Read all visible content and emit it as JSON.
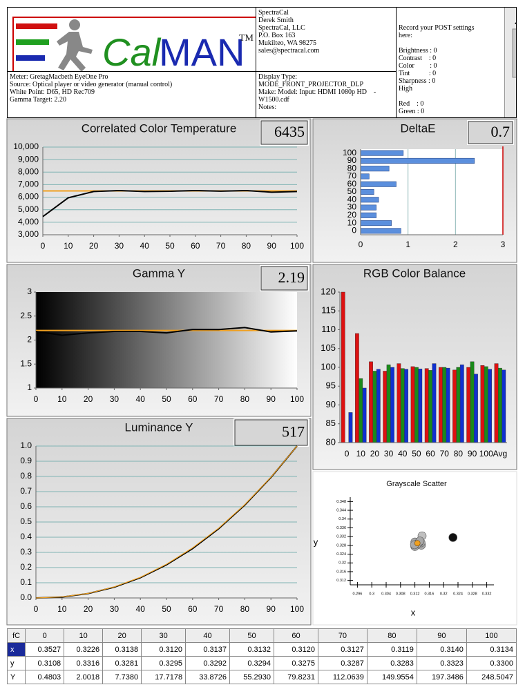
{
  "logo": {
    "part1": "Cal",
    "part2": "MAN",
    "tm": "TM"
  },
  "company": {
    "lines": [
      "SpectraCal",
      "Derek Smith",
      "SpectraCal, LLC",
      "P.O. Box 163",
      "Mukilteo, WA 98275",
      "sales@spectracal.com"
    ]
  },
  "post": {
    "lines": [
      "Record your POST settings",
      "here:",
      "Brightness : 0",
      "Contrast    : 0",
      "Color         : 0",
      "Tint           : 0",
      "Sharpness : 0",
      "High",
      "Red    : 0",
      "Green : 0"
    ]
  },
  "meter": {
    "lines": [
      "Meter: GretagMacbeth EyeOne Pro",
      "Source: Optical player or video generator (manual control)",
      "White Point: D65, HD Rec709",
      "Gamma Target: 2.20"
    ]
  },
  "display": {
    "lines": [
      "Display Type:",
      "MODE_FRONT_PROJECTOR_DLP",
      "Make: Model: Input: HDMI 1080p HD    -",
      "W1500.cdf",
      "Notes:"
    ]
  },
  "chart_data": [
    {
      "type": "line",
      "title": "Correlated Color Temperature",
      "readout": 6435,
      "x": [
        0,
        10,
        20,
        30,
        40,
        50,
        60,
        70,
        80,
        90,
        100
      ],
      "series": [
        {
          "color": "#000000",
          "values": [
            4450,
            5950,
            6450,
            6530,
            6450,
            6470,
            6530,
            6480,
            6530,
            6400,
            6450
          ]
        }
      ],
      "target": 6500,
      "target_color": "#f0a020",
      "xlim": [
        0,
        100
      ],
      "xticks": [
        0,
        10,
        20,
        30,
        40,
        50,
        60,
        70,
        80,
        90,
        100
      ],
      "ylim": [
        3000,
        10000
      ],
      "yticks": [
        {
          "value": 3000,
          "label": "3,000"
        },
        {
          "value": 4000,
          "label": "4,000"
        },
        {
          "value": 5000,
          "label": "5,000"
        },
        {
          "value": 6000,
          "label": "6,000"
        },
        {
          "value": 7000,
          "label": "7,000"
        },
        {
          "value": 8000,
          "label": "8,000"
        },
        {
          "value": 9000,
          "label": "9,000"
        },
        {
          "value": 10000,
          "label": "10,000"
        }
      ],
      "grid": true
    },
    {
      "type": "bar",
      "orientation": "horizontal",
      "title": "DeltaE",
      "readout": 0.7,
      "categories": [
        0,
        10,
        20,
        30,
        40,
        50,
        60,
        70,
        80,
        90,
        100
      ],
      "values": [
        0.85,
        0.65,
        0.33,
        0.33,
        0.38,
        0.28,
        0.75,
        0.18,
        0.6,
        2.4,
        0.9
      ],
      "color": "#5b8fdd",
      "threshold": 3,
      "threshold_color": "#cc0000",
      "xlim": [
        0,
        3
      ],
      "xticks": [
        0,
        1,
        2,
        3
      ],
      "grid": true
    },
    {
      "type": "line",
      "title": "Gamma Y",
      "readout": 2.19,
      "x": [
        0,
        10,
        20,
        30,
        40,
        50,
        60,
        70,
        80,
        90,
        100
      ],
      "series": [
        {
          "color": "#000000",
          "values": [
            2.18,
            2.1,
            2.15,
            2.18,
            2.18,
            2.15,
            2.22,
            2.22,
            2.26,
            2.17,
            2.19
          ]
        }
      ],
      "target": 2.2,
      "target_color": "#f0a020",
      "xlim": [
        0,
        100
      ],
      "xticks": [
        0,
        10,
        20,
        30,
        40,
        50,
        60,
        70,
        80,
        90,
        100
      ],
      "ylim": [
        1,
        3
      ],
      "yticks": [
        1,
        1.5,
        2,
        2.5,
        3
      ],
      "grid": false
    },
    {
      "type": "bar",
      "title": "RGB Color Balance",
      "categories": [
        "0",
        "10",
        "20",
        "30",
        "40",
        "50",
        "60",
        "70",
        "80",
        "90",
        "100",
        "Avg"
      ],
      "series": [
        {
          "color": "#dd1111",
          "values": [
            120,
            109,
            101.5,
            99,
            101,
            100.2,
            99.7,
            100,
            99.3,
            100,
            100.5,
            101
          ]
        },
        {
          "color": "#1a8a1a",
          "values": [
            null,
            97,
            99,
            100.7,
            99.7,
            100,
            99.2,
            100,
            100,
            101.5,
            100.2,
            99.8
          ]
        },
        {
          "color": "#1030d0",
          "values": [
            88,
            94.5,
            99.5,
            100,
            99.5,
            99.6,
            101,
            99.8,
            100.7,
            98.2,
            99.5,
            99.3
          ]
        }
      ],
      "ylim": [
        80,
        120
      ],
      "yticks": [
        80,
        85,
        90,
        95,
        100,
        105,
        110,
        115,
        120
      ]
    },
    {
      "type": "line",
      "title": "Luminance Y",
      "readout": 517,
      "x": [
        0,
        10,
        20,
        30,
        40,
        50,
        60,
        70,
        80,
        90,
        100
      ],
      "series": [
        {
          "color": "#000000",
          "values": [
            0,
            0.006,
            0.029,
            0.071,
            0.133,
            0.218,
            0.325,
            0.456,
            0.612,
            0.793,
            1.0
          ]
        },
        {
          "color": "#f0a020",
          "values": [
            0,
            0.007,
            0.03,
            0.073,
            0.136,
            0.222,
            0.33,
            0.46,
            0.615,
            0.795,
            1.0
          ]
        }
      ],
      "xlim": [
        0,
        100
      ],
      "xticks": [
        0,
        10,
        20,
        30,
        40,
        50,
        60,
        70,
        80,
        90,
        100
      ],
      "ylim": [
        0,
        1
      ],
      "yticks": [
        {
          "value": 0,
          "label": "0.0"
        },
        0.1,
        0.2,
        0.3,
        0.4,
        0.5,
        0.6,
        0.7,
        0.8,
        0.9,
        {
          "value": 1,
          "label": "1.0"
        }
      ],
      "grid": true
    },
    {
      "type": "scatter",
      "title": "Grayscale Scatter",
      "xlabel": "x",
      "ylabel": "y",
      "series": [
        {
          "x": [
            0.3226,
            0.3138,
            0.312,
            0.3137,
            0.3132,
            0.312,
            0.3127,
            0.3119,
            0.314,
            0.3134
          ],
          "values": [
            0.3316,
            0.3281,
            0.3295,
            0.3292,
            0.3294,
            0.3275,
            0.3287,
            0.3283,
            0.3323,
            0.33
          ],
          "colors": [
            "#111111",
            "#a8a8a8",
            "#a8a8a8",
            "#a8a8a8",
            "#a8a8a8",
            "#a8a8a8",
            "#a8a8a8",
            "#a8a8a8",
            "#c0c0c0",
            "#a8a8a8"
          ]
        }
      ],
      "target": {
        "x": 0.3127,
        "y": 0.329,
        "color": "#f0a020"
      },
      "xlim": [
        0.294,
        0.334
      ],
      "xticks": [
        0.296,
        0.3,
        0.304,
        0.308,
        0.312,
        0.316,
        0.32,
        0.324,
        0.328,
        0.332
      ],
      "ylim": [
        0.31,
        0.35
      ],
      "yticks": [
        0.312,
        0.316,
        0.32,
        0.324,
        0.328,
        0.332,
        0.336,
        0.34,
        0.344,
        0.348
      ]
    }
  ],
  "table": {
    "header": [
      "fC",
      0,
      10,
      20,
      30,
      40,
      50,
      60,
      70,
      80,
      90,
      100
    ],
    "rows": [
      [
        "x",
        "0.3527",
        "0.3226",
        "0.3138",
        "0.3120",
        "0.3137",
        "0.3132",
        "0.3120",
        "0.3127",
        "0.3119",
        "0.3140",
        "0.3134"
      ],
      [
        "y",
        "0.3108",
        "0.3316",
        "0.3281",
        "0.3295",
        "0.3292",
        "0.3294",
        "0.3275",
        "0.3287",
        "0.3283",
        "0.3323",
        "0.3300"
      ],
      [
        "Y",
        "0.4803",
        "2.0018",
        "7.7380",
        "17.7178",
        "33.8726",
        "55.2930",
        "79.8231",
        "112.0639",
        "149.9554",
        "197.3486",
        "248.5047"
      ]
    ]
  }
}
